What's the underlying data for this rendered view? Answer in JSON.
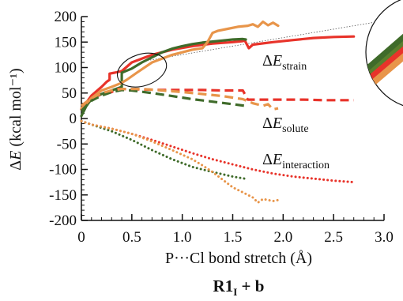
{
  "chart_data": {
    "type": "line",
    "xlabel": "P···Cl bond stretch (Å)",
    "ylabel_delta": "Δ",
    "ylabel_italic": "E",
    "ylabel_unit": " (kcal mol⁻¹)",
    "panel_label_main": "R1",
    "panel_label_sub": "I",
    "panel_label_rest": " + b",
    "xlim": [
      0,
      3.0
    ],
    "ylim": [
      -200,
      200
    ],
    "x_ticks": [
      0,
      0.5,
      1.0,
      1.5,
      2.0,
      2.5,
      3.0
    ],
    "x_tick_labels": [
      "0",
      "0.5",
      "1.0",
      "1.5",
      "2.0",
      "2.5",
      "3.0"
    ],
    "y_ticks": [
      200,
      150,
      100,
      50,
      0,
      -50,
      -100,
      -150,
      -200
    ],
    "y_tick_labels": [
      "200",
      "150",
      "100",
      "50",
      "0",
      "-50",
      "-100",
      "-150",
      "-200"
    ],
    "grid": false,
    "labels": {
      "strain": {
        "delta": "Δ",
        "E": "E",
        "sub": "strain"
      },
      "solute": {
        "delta": "Δ",
        "E": "E",
        "sub": "solute"
      },
      "interaction": {
        "delta": "Δ",
        "E": "E",
        "sub": "interaction"
      }
    },
    "colors": {
      "red": "#e8332a",
      "green": "#3f6b2a",
      "orange": "#e8954a",
      "olive": "#5a7f2e"
    },
    "zoom_circle": {
      "center": [
        0.6,
        95
      ]
    },
    "zoom_line": {
      "x": [
        0.6,
        3.0
      ],
      "y": [
        112,
        192
      ]
    },
    "series": [
      {
        "component": "strain",
        "color": "red",
        "style": "solid",
        "x": [
          0.0,
          0.1,
          0.2,
          0.25,
          0.28,
          0.28,
          0.33,
          0.4,
          0.5,
          0.7,
          0.9,
          1.1,
          1.3,
          1.5,
          1.6,
          1.62,
          1.66,
          1.7,
          1.9,
          2.1,
          2.3,
          2.5,
          2.7
        ],
        "y": [
          18,
          45,
          62,
          72,
          76,
          88,
          90,
          93,
          110,
          125,
          135,
          142,
          147,
          150,
          152,
          153,
          138,
          145,
          150,
          154,
          158,
          160,
          161
        ]
      },
      {
        "component": "strain",
        "color": "green",
        "style": "solid",
        "x": [
          0.0,
          0.05,
          0.1,
          0.2,
          0.3,
          0.4,
          0.4,
          0.5,
          0.6,
          0.7,
          0.8,
          0.9,
          1.0,
          1.1,
          1.2,
          1.3,
          1.4,
          1.5,
          1.6,
          1.63
        ],
        "y": [
          5,
          25,
          38,
          48,
          55,
          62,
          90,
          98,
          110,
          120,
          130,
          137,
          142,
          146,
          149,
          151,
          153,
          155,
          156,
          155
        ]
      },
      {
        "component": "strain",
        "color": "orange",
        "style": "solid",
        "x": [
          0.0,
          0.1,
          0.2,
          0.3,
          0.4,
          0.45,
          0.55,
          0.7,
          0.9,
          1.1,
          1.2,
          1.25,
          1.3,
          1.35,
          1.45,
          1.55,
          1.65,
          1.7,
          1.75,
          1.8,
          1.85,
          1.9,
          1.95
        ],
        "y": [
          20,
          40,
          55,
          62,
          70,
          76,
          90,
          110,
          125,
          135,
          138,
          150,
          168,
          172,
          176,
          180,
          182,
          185,
          180,
          190,
          183,
          188,
          182
        ]
      },
      {
        "component": "solute",
        "color": "red",
        "style": "dashed",
        "x": [
          0.0,
          0.1,
          0.2,
          0.3,
          0.35,
          0.45,
          0.6,
          0.8,
          1.0,
          1.2,
          1.4,
          1.6,
          1.65,
          1.8,
          2.0,
          2.2,
          2.4,
          2.6,
          2.7
        ],
        "y": [
          25,
          40,
          48,
          52,
          58,
          58,
          57,
          56,
          56,
          56,
          55,
          55,
          37,
          37,
          37,
          37,
          36,
          36,
          36
        ]
      },
      {
        "component": "solute",
        "color": "green",
        "style": "dashed",
        "x": [
          0.0,
          0.1,
          0.2,
          0.3,
          0.4,
          0.5,
          0.7,
          0.9,
          1.1,
          1.3,
          1.5,
          1.62
        ],
        "y": [
          15,
          35,
          45,
          52,
          56,
          55,
          50,
          44,
          38,
          33,
          28,
          25
        ]
      },
      {
        "component": "solute",
        "color": "orange",
        "style": "dashed",
        "x": [
          0.0,
          0.1,
          0.2,
          0.3,
          0.4,
          0.6,
          0.8,
          1.0,
          1.2,
          1.4,
          1.6,
          1.7,
          1.8,
          1.85,
          1.9,
          1.95
        ],
        "y": [
          25,
          40,
          50,
          55,
          58,
          58,
          55,
          52,
          48,
          44,
          38,
          30,
          25,
          28,
          18,
          20
        ]
      },
      {
        "component": "interaction",
        "color": "red",
        "style": "dotted",
        "x": [
          0.0,
          0.1,
          0.3,
          0.5,
          0.7,
          0.9,
          1.1,
          1.3,
          1.5,
          1.7,
          1.9,
          2.1,
          2.3,
          2.5,
          2.7
        ],
        "y": [
          -5,
          -12,
          -20,
          -30,
          -42,
          -55,
          -68,
          -80,
          -90,
          -100,
          -108,
          -114,
          -118,
          -122,
          -125
        ]
      },
      {
        "component": "interaction",
        "color": "green",
        "style": "dotted",
        "x": [
          0.0,
          0.1,
          0.3,
          0.5,
          0.7,
          0.9,
          1.1,
          1.3,
          1.5,
          1.62
        ],
        "y": [
          -5,
          -12,
          -25,
          -42,
          -62,
          -80,
          -95,
          -105,
          -114,
          -118
        ]
      },
      {
        "component": "interaction",
        "color": "orange",
        "style": "dotted",
        "x": [
          0.0,
          0.1,
          0.3,
          0.5,
          0.7,
          0.9,
          1.1,
          1.2,
          1.3,
          1.4,
          1.5,
          1.6,
          1.7,
          1.75,
          1.8,
          1.9,
          1.95
        ],
        "y": [
          -5,
          -12,
          -20,
          -30,
          -45,
          -62,
          -80,
          -92,
          -105,
          -120,
          -135,
          -145,
          -155,
          -165,
          -158,
          -162,
          -160
        ]
      }
    ]
  }
}
